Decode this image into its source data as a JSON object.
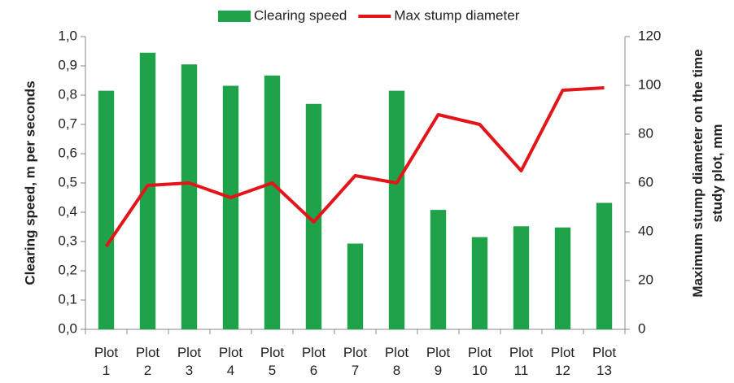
{
  "chart_data": {
    "type": "bar",
    "ylabel": "Clearing speed, m per seconds",
    "y2label": "Maximum stump diameter on the time study plot, mm",
    "categories": [
      "Plot 1",
      "Plot 2",
      "Plot 3",
      "Plot 4",
      "Plot 5",
      "Plot 6",
      "Plot 7",
      "Plot 8",
      "Plot 9",
      "Plot 10",
      "Plot 11",
      "Plot 12",
      "Plot 13"
    ],
    "series": [
      {
        "name": "Clearing speed",
        "color": "#1fa34a",
        "type": "bar",
        "values": [
          0.815,
          0.945,
          0.905,
          0.832,
          0.867,
          0.77,
          0.293,
          0.815,
          0.408,
          0.315,
          0.352,
          0.348,
          0.432
        ]
      },
      {
        "name": "Max stump diameter",
        "color": "#e3151b",
        "type": "line",
        "axis": "y2",
        "values": [
          34,
          59,
          60,
          54,
          60,
          44,
          63,
          60,
          88,
          84,
          65,
          98,
          99
        ]
      }
    ],
    "ylim": [
      0,
      1
    ],
    "yticks": [
      {
        "value": 0,
        "label": "0,0"
      },
      {
        "value": 0.1,
        "label": "0,1"
      },
      {
        "value": 0.2,
        "label": "0,2"
      },
      {
        "value": 0.3,
        "label": "0,3"
      },
      {
        "value": 0.4,
        "label": "0,4"
      },
      {
        "value": 0.5,
        "label": "0,5"
      },
      {
        "value": 0.6,
        "label": "0,6"
      },
      {
        "value": 0.7,
        "label": "0,7"
      },
      {
        "value": 0.8,
        "label": "0,8"
      },
      {
        "value": 0.9,
        "label": "0,9"
      },
      {
        "value": 1,
        "label": "1,0"
      }
    ],
    "y2lim": [
      0,
      120
    ],
    "y2ticks": [
      0,
      20,
      40,
      60,
      80,
      100,
      120
    ],
    "grid": false,
    "legend": "top"
  }
}
